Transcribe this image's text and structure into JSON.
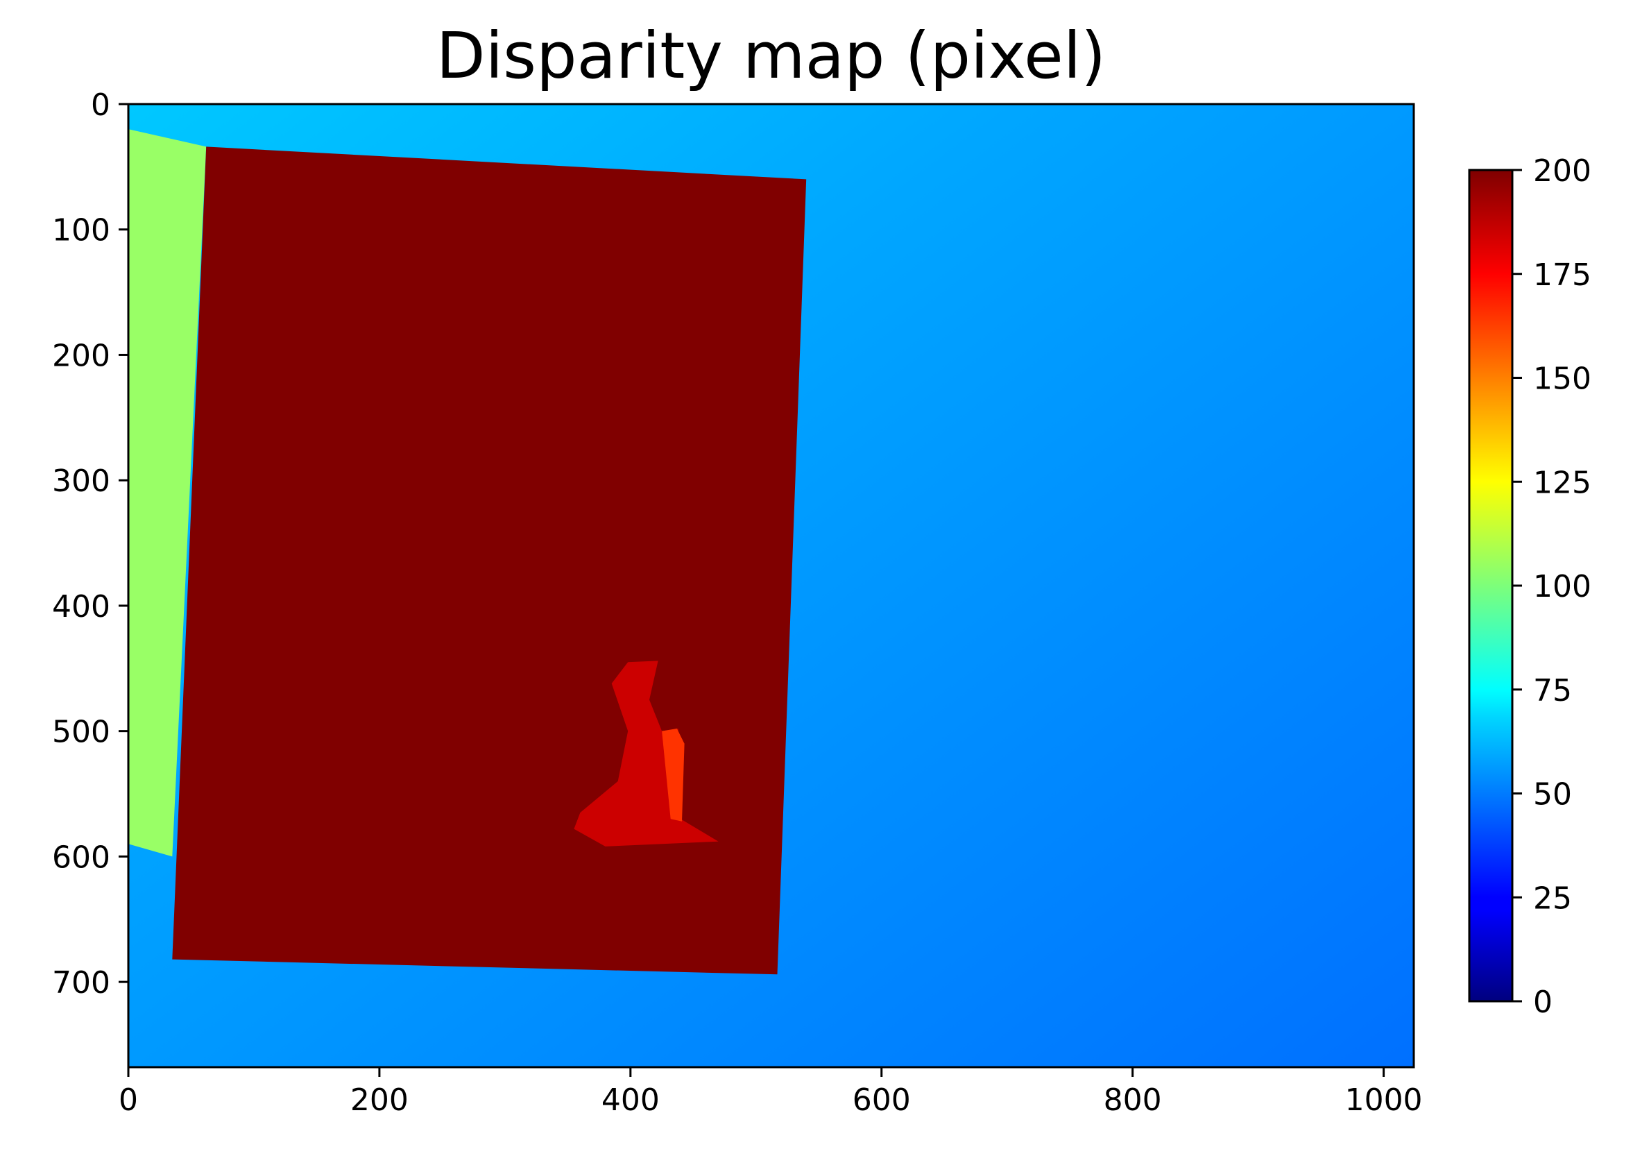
{
  "chart_data": {
    "type": "heatmap",
    "title": "Disparity map (pixel)",
    "xlabel": "",
    "ylabel": "",
    "xlim": [
      0,
      1024
    ],
    "ylim": [
      768,
      0
    ],
    "x_ticks": [
      0,
      200,
      400,
      600,
      800,
      1000
    ],
    "y_ticks": [
      0,
      100,
      200,
      300,
      400,
      500,
      600,
      700
    ],
    "grid": false,
    "colormap": "jet",
    "colorbar": {
      "vmin": 0,
      "vmax": 200,
      "ticks": [
        0,
        25,
        50,
        75,
        100,
        125,
        150,
        175,
        200
      ]
    },
    "regions": [
      {
        "name": "background",
        "value": 50,
        "value_top_left": 62,
        "value_bottom_right": 44
      },
      {
        "name": "left-strip",
        "value": 105,
        "polygon": [
          [
            0,
            20
          ],
          [
            62,
            34
          ],
          [
            35,
            600
          ],
          [
            0,
            590
          ]
        ]
      },
      {
        "name": "board",
        "value": 200,
        "polygon": [
          [
            62,
            34
          ],
          [
            540,
            60
          ],
          [
            517,
            694
          ],
          [
            35,
            682
          ]
        ]
      },
      {
        "name": "object",
        "value": 185,
        "polygon": [
          [
            385,
            462
          ],
          [
            398,
            445
          ],
          [
            422,
            444
          ],
          [
            415,
            475
          ],
          [
            425,
            500
          ],
          [
            438,
            498
          ],
          [
            440,
            570
          ],
          [
            470,
            588
          ],
          [
            380,
            592
          ],
          [
            355,
            578
          ],
          [
            360,
            565
          ],
          [
            390,
            540
          ],
          [
            398,
            500
          ]
        ]
      },
      {
        "name": "object-front",
        "value": 165,
        "polygon": [
          [
            425,
            500
          ],
          [
            437,
            498
          ],
          [
            443,
            510
          ],
          [
            441,
            572
          ],
          [
            432,
            570
          ]
        ]
      }
    ]
  }
}
